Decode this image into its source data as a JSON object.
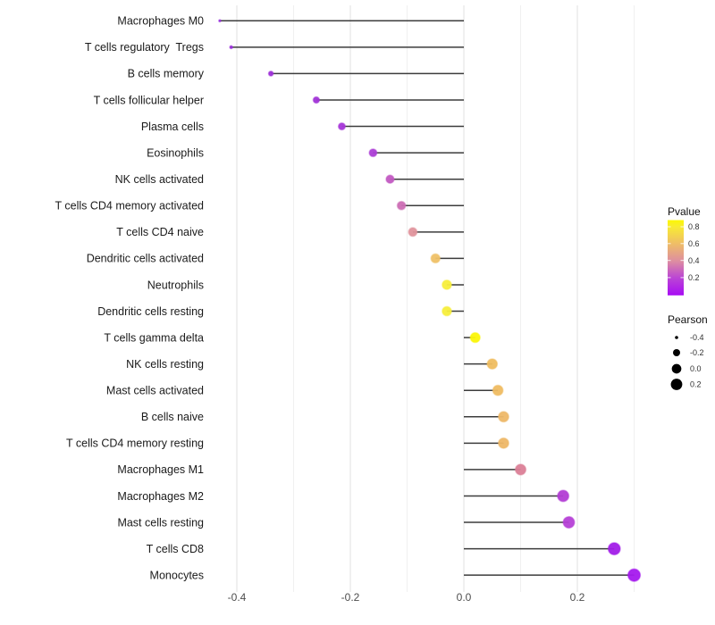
{
  "chart_data": {
    "type": "lollipop",
    "title": "",
    "xlabel": "",
    "ylabel": "",
    "x_axis": {
      "tick_labels": [
        "-0.4",
        "-0.2",
        "0.0",
        "0.2"
      ],
      "tick_values": [
        -0.4,
        -0.2,
        0.0,
        0.2
      ],
      "minor_grid_values": [
        -0.3,
        -0.1,
        0.1,
        0.3
      ],
      "range": [
        -0.47,
        0.335
      ]
    },
    "baseline": 0.0,
    "points": [
      {
        "label": "Macrophages M0",
        "pearson": -0.43,
        "pvalue_color": "#9329DC"
      },
      {
        "label": "T cells regulatory  Tregs",
        "pearson": -0.41,
        "pvalue_color": "#982BDA"
      },
      {
        "label": "B cells memory",
        "pearson": -0.34,
        "pvalue_color": "#9D2FD8"
      },
      {
        "label": "T cells follicular helper",
        "pearson": -0.26,
        "pvalue_color": "#A134D8"
      },
      {
        "label": "Plasma cells",
        "pearson": -0.215,
        "pvalue_color": "#A637D9"
      },
      {
        "label": "Eosinophils",
        "pearson": -0.16,
        "pvalue_color": "#AC3ED6"
      },
      {
        "label": "NK cells activated",
        "pearson": -0.13,
        "pvalue_color": "#C259C2"
      },
      {
        "label": "T cells CD4 memory activated",
        "pearson": -0.11,
        "pvalue_color": "#CC6DB4"
      },
      {
        "label": "T cells CD4 naive",
        "pearson": -0.09,
        "pvalue_color": "#E0939C"
      },
      {
        "label": "Dendritic cells activated",
        "pearson": -0.05,
        "pvalue_color": "#EFC167"
      },
      {
        "label": "Neutrophils",
        "pearson": -0.03,
        "pvalue_color": "#F7EE3B"
      },
      {
        "label": "Dendritic cells resting",
        "pearson": -0.03,
        "pvalue_color": "#F7EE3B"
      },
      {
        "label": "T cells gamma delta",
        "pearson": 0.02,
        "pvalue_color": "#FBF607"
      },
      {
        "label": "NK cells resting",
        "pearson": 0.05,
        "pvalue_color": "#EFBD60"
      },
      {
        "label": "Mast cells activated",
        "pearson": 0.06,
        "pvalue_color": "#EFBC62"
      },
      {
        "label": "B cells naive",
        "pearson": 0.07,
        "pvalue_color": "#EEB868"
      },
      {
        "label": "T cells CD4 memory resting",
        "pearson": 0.07,
        "pvalue_color": "#EEB767"
      },
      {
        "label": "Macrophages M1",
        "pearson": 0.1,
        "pvalue_color": "#DB8097"
      },
      {
        "label": "Macrophages M2",
        "pearson": 0.175,
        "pvalue_color": "#B23CD4"
      },
      {
        "label": "Mast cells resting",
        "pearson": 0.185,
        "pvalue_color": "#B540D6"
      },
      {
        "label": "T cells CD8",
        "pearson": 0.265,
        "pvalue_color": "#A21EE8"
      },
      {
        "label": "Monocytes",
        "pearson": 0.3,
        "pvalue_color": "#A519EE"
      }
    ],
    "legends": {
      "pvalue": {
        "title": "Pvalue",
        "tick_labels": [
          "0.8",
          "0.6",
          "0.4",
          "0.2"
        ],
        "tick_values": [
          0.8,
          0.6,
          0.4,
          0.2
        ],
        "gradient_stops_bottom_to_top": [
          {
            "offset": 0.0,
            "color": "#A80CF4"
          },
          {
            "offset": 0.235,
            "color": "#BB46D4"
          },
          {
            "offset": 0.46,
            "color": "#DE8FA0"
          },
          {
            "offset": 0.69,
            "color": "#EFBE66"
          },
          {
            "offset": 0.91,
            "color": "#F8EB33"
          },
          {
            "offset": 1.0,
            "color": "#FCF803"
          }
        ]
      },
      "pearson": {
        "title": "Pearson",
        "items": [
          {
            "label": "-0.4",
            "value": -0.4
          },
          {
            "label": "-0.2",
            "value": -0.2
          },
          {
            "label": "0.0",
            "value": 0.0
          },
          {
            "label": "0.2",
            "value": 0.2
          }
        ]
      }
    },
    "colors": {
      "background": "#FFFFFF",
      "stem": "#3C3C3C",
      "grid_major": "#E4E4E4",
      "grid_minor": "#F0F0F0",
      "axis_text": "#4D4D4D",
      "category_text": "#1A1A1A",
      "legend_dot": "#000000"
    }
  }
}
